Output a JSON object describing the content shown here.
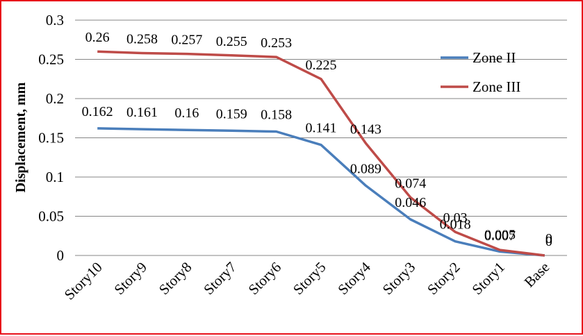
{
  "chart_data": {
    "type": "line",
    "categories": [
      "Story10",
      "Story9",
      "Story8",
      "Story7",
      "Story6",
      "Story5",
      "Story4",
      "Story3",
      "Story2",
      "Story1",
      "Base"
    ],
    "series": [
      {
        "name": "Zone II",
        "color": "#4a7ebb",
        "values": [
          0.162,
          0.161,
          0.16,
          0.159,
          0.158,
          0.141,
          0.089,
          0.046,
          0.018,
          0.005,
          0
        ]
      },
      {
        "name": "Zone III",
        "color": "#be4b48",
        "values": [
          0.26,
          0.258,
          0.257,
          0.255,
          0.253,
          0.225,
          0.143,
          0.074,
          0.03,
          0.007,
          0
        ]
      }
    ],
    "title": "",
    "xlabel": "",
    "ylabel": "Displacement, mm",
    "ylim": [
      0,
      0.3
    ],
    "yticks": [
      0,
      0.05,
      0.1,
      0.15,
      0.2,
      0.25,
      0.3
    ],
    "ytick_labels": [
      "0",
      "0.05",
      "0.1",
      "0.15",
      "0.2",
      "0.25",
      "0.3"
    ],
    "grid": true,
    "legend_position": "right"
  }
}
